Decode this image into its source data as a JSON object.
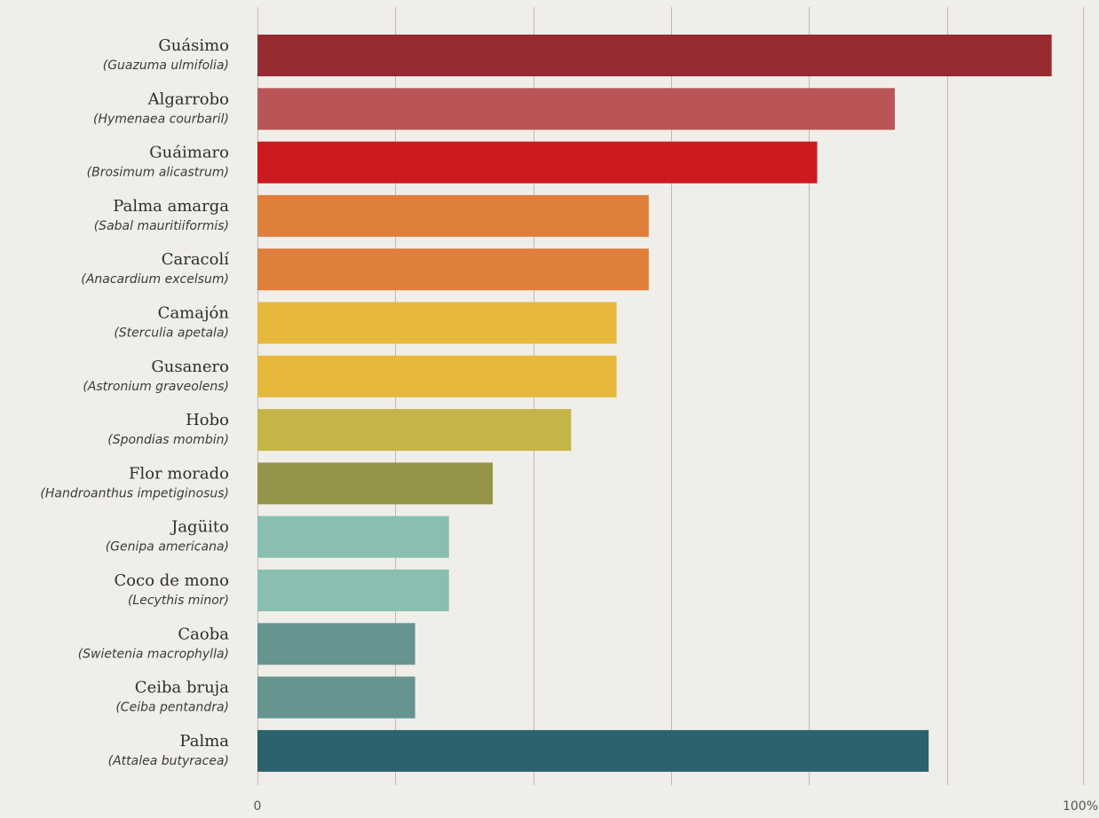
{
  "chart_data": {
    "type": "bar",
    "orientation": "horizontal",
    "xlim": [
      0,
      100
    ],
    "x_ticks": [
      {
        "value": 0,
        "label": "0"
      },
      {
        "value": 100,
        "label": "100%"
      }
    ],
    "gridlines": [
      0,
      16.7,
      33.4,
      50.1,
      66.8,
      83.5,
      100
    ],
    "grid": true,
    "categories": [
      {
        "name": "Guásimo",
        "scientific": "(Guazuma ulmifolia)",
        "value": 96.2,
        "color": "#982b31"
      },
      {
        "name": "Algarrobo",
        "scientific": "(Hymenaea courbaril)",
        "value": 77.2,
        "color": "#b95556"
      },
      {
        "name": "Guáimaro",
        "scientific": "(Brosimum alicastrum)",
        "value": 67.8,
        "color": "#cc1a1e"
      },
      {
        "name": "Palma amarga",
        "scientific": "(Sabal mauritiiformis)",
        "value": 47.4,
        "color": "#e07e3b"
      },
      {
        "name": "Caracolí",
        "scientific": "(Anacardium excelsum)",
        "value": 47.4,
        "color": "#e07e3b"
      },
      {
        "name": "Camajón",
        "scientific": "(Sterculia apetala)",
        "value": 43.5,
        "color": "#e6b93c"
      },
      {
        "name": "Gusanero",
        "scientific": "(Astronium graveolens)",
        "value": 43.5,
        "color": "#e6b93c"
      },
      {
        "name": "Hobo",
        "scientific": "(Spondias mombin)",
        "value": 38.0,
        "color": "#c3b547"
      },
      {
        "name": "Flor morado",
        "scientific": "(Handroanthus impetiginosus)",
        "value": 28.5,
        "color": "#969448"
      },
      {
        "name": "Jagüito",
        "scientific": "(Genipa americana)",
        "value": 23.2,
        "color": "#88bfb0"
      },
      {
        "name": "Coco de mono",
        "scientific": "(Lecythis minor)",
        "value": 23.2,
        "color": "#88bfb0"
      },
      {
        "name": "Caoba",
        "scientific": "(Swietenia macrophylla)",
        "value": 19.1,
        "color": "#659491"
      },
      {
        "name": "Ceiba bruja",
        "scientific": "(Ceiba pentandra)",
        "value": 19.1,
        "color": "#659491"
      },
      {
        "name": "Palma",
        "scientific": "(Attalea butyracea)",
        "value": 81.3,
        "color": "#2c626d"
      }
    ]
  }
}
